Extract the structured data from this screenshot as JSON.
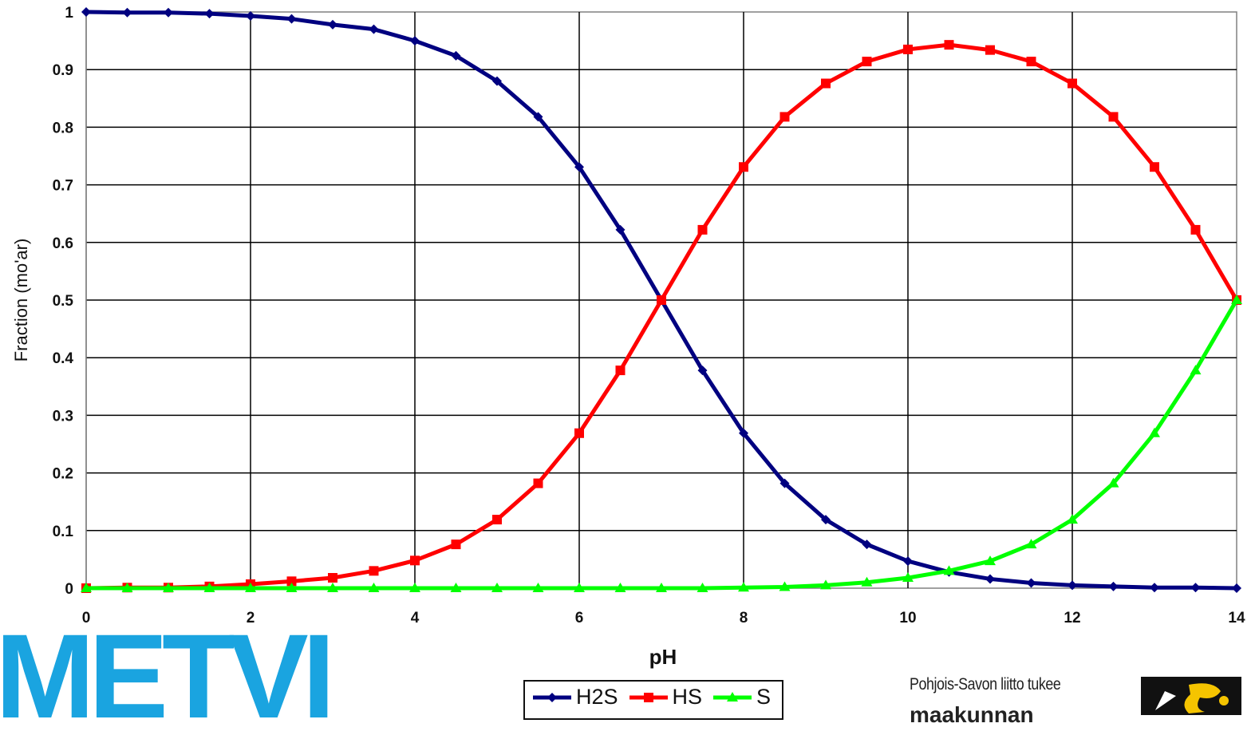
{
  "chart_data": {
    "type": "line",
    "title": "",
    "xlabel": "pH",
    "ylabel": "Fraction (mo'ar)",
    "xlim": [
      0,
      14
    ],
    "ylim": [
      0,
      1
    ],
    "x_ticks": [
      0,
      2,
      4,
      6,
      8,
      10,
      12,
      14
    ],
    "y_ticks": [
      0,
      0.1,
      0.2,
      0.3,
      0.4,
      0.5,
      0.6,
      0.7,
      0.8,
      0.9,
      1
    ],
    "y_tick_labels": [
      "0",
      "0.1",
      "0.2",
      "0.3",
      "0.4",
      "0.5",
      "0.6",
      "0.7",
      "0.8",
      "0.9",
      "1"
    ],
    "grid": true,
    "legend_position": "bottom-center",
    "x": [
      0,
      0.5,
      1,
      1.5,
      2,
      2.5,
      3,
      3.5,
      4,
      4.5,
      5,
      5.5,
      6,
      6.5,
      7,
      7.5,
      8,
      8.5,
      9,
      9.5,
      10,
      10.5,
      11,
      11.5,
      12,
      12.5,
      13,
      13.5,
      14
    ],
    "series": [
      {
        "name": "H2S",
        "color": "#000080",
        "marker": "diamond",
        "values": [
          1.0,
          0.999,
          0.999,
          0.997,
          0.993,
          0.988,
          0.978,
          0.97,
          0.95,
          0.924,
          0.88,
          0.818,
          0.731,
          0.622,
          0.5,
          0.378,
          0.269,
          0.182,
          0.119,
          0.076,
          0.047,
          0.028,
          0.016,
          0.009,
          0.005,
          0.003,
          0.001,
          0.001,
          0.0
        ]
      },
      {
        "name": "HS",
        "color": "#ff0000",
        "marker": "square",
        "values": [
          0.0,
          0.001,
          0.001,
          0.003,
          0.007,
          0.012,
          0.018,
          0.03,
          0.048,
          0.076,
          0.119,
          0.182,
          0.269,
          0.378,
          0.5,
          0.622,
          0.731,
          0.818,
          0.876,
          0.914,
          0.935,
          0.943,
          0.934,
          0.914,
          0.876,
          0.818,
          0.731,
          0.622,
          0.5
        ]
      },
      {
        "name": "S",
        "color": "#00ff00",
        "marker": "triangle",
        "values": [
          0.0,
          0.0,
          0.0,
          0.0,
          0.0,
          0.0,
          0.0,
          0.0,
          0.0,
          0.0,
          0.0,
          0.0,
          0.0,
          0.0,
          0.0,
          0.0,
          0.001,
          0.002,
          0.005,
          0.01,
          0.018,
          0.03,
          0.047,
          0.076,
          0.119,
          0.182,
          0.269,
          0.378,
          0.5
        ]
      }
    ]
  },
  "logo": {
    "text": "METVI",
    "color": "#1aa4e0"
  },
  "sponsor": {
    "line1": "Pohjois-Savon liitto tukee",
    "line2": "maakunnan"
  }
}
